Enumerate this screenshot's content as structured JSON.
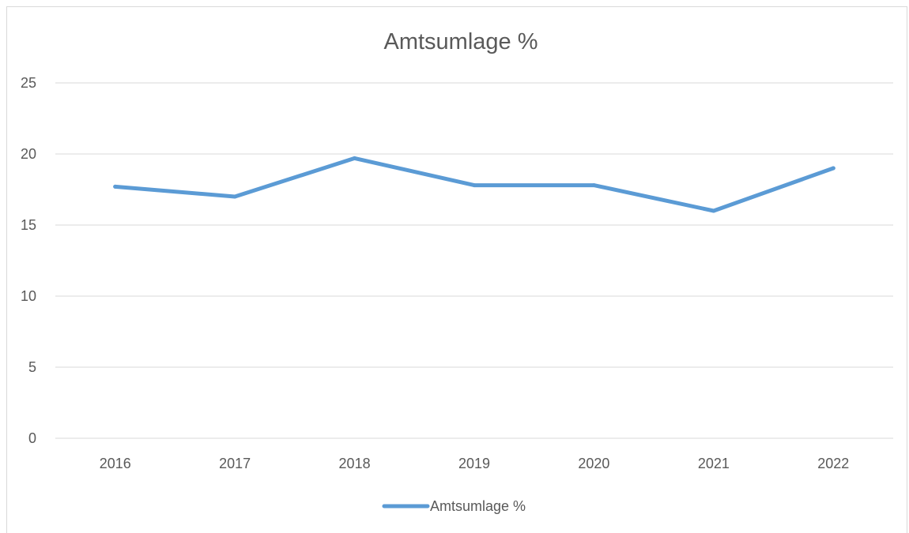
{
  "chart_data": {
    "type": "line",
    "title": "Amtsumlage %",
    "categories": [
      "2016",
      "2017",
      "2018",
      "2019",
      "2020",
      "2021",
      "2022"
    ],
    "series": [
      {
        "name": "Amtsumlage %",
        "values": [
          17.7,
          17.0,
          19.7,
          17.8,
          17.8,
          16.0,
          19.0
        ],
        "color": "#5B9BD5"
      }
    ],
    "ylim": [
      0,
      25
    ],
    "yticks": [
      "0",
      "5",
      "10",
      "15",
      "20",
      "25"
    ],
    "grid": true,
    "legend_position": "bottom",
    "gridline_color": "#d9d9d9",
    "text_color": "#595959"
  }
}
